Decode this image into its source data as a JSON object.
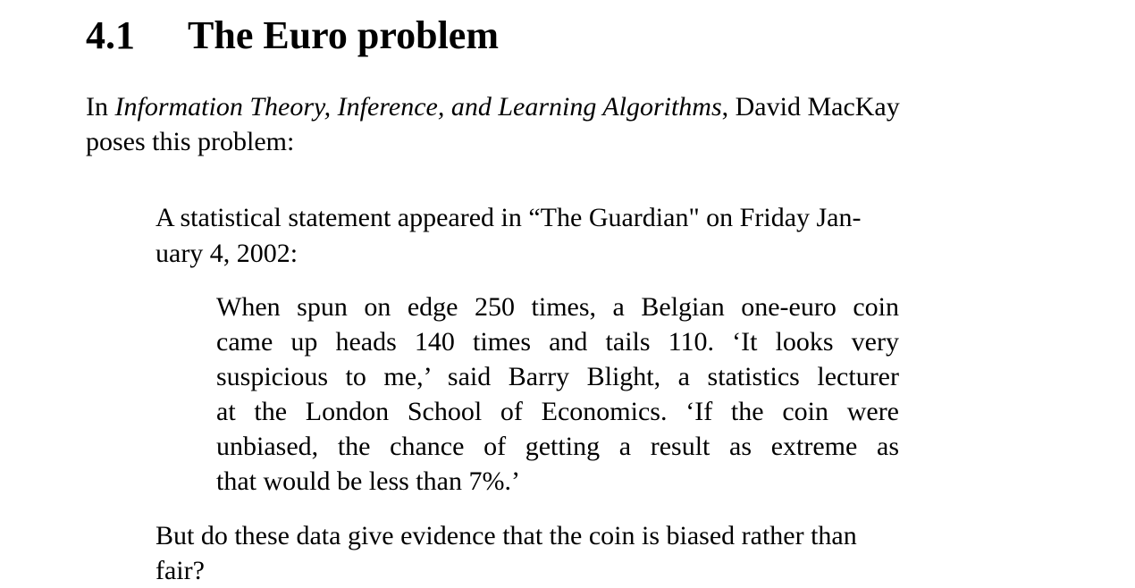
{
  "section": {
    "number": "4.1",
    "title": "The Euro problem"
  },
  "intro": {
    "prefix": "In ",
    "book_title": "Information Theory, Inference, and Learning Algorithms",
    "suffix": ", David MacKay",
    "line2": "poses this problem:"
  },
  "quote": {
    "lines": [
      "A statistical statement appeared in “The Guardian\" on Friday Jan-",
      "uary 4, 2002:"
    ]
  },
  "inner_quote": {
    "lines": [
      "When spun on edge 250 times, a Belgian one-euro coin",
      "came up heads 140 times and tails 110.  ‘It looks very",
      "suspicious to me,’ said Barry Blight, a statistics lecturer",
      "at the London School of Economics.  ‘If the coin were",
      "unbiased, the chance of getting a result as extreme as",
      "that would be less than 7%.’"
    ]
  },
  "closing": {
    "lines": [
      "But do these data give evidence that the coin is biased rather than",
      "fair?"
    ]
  }
}
